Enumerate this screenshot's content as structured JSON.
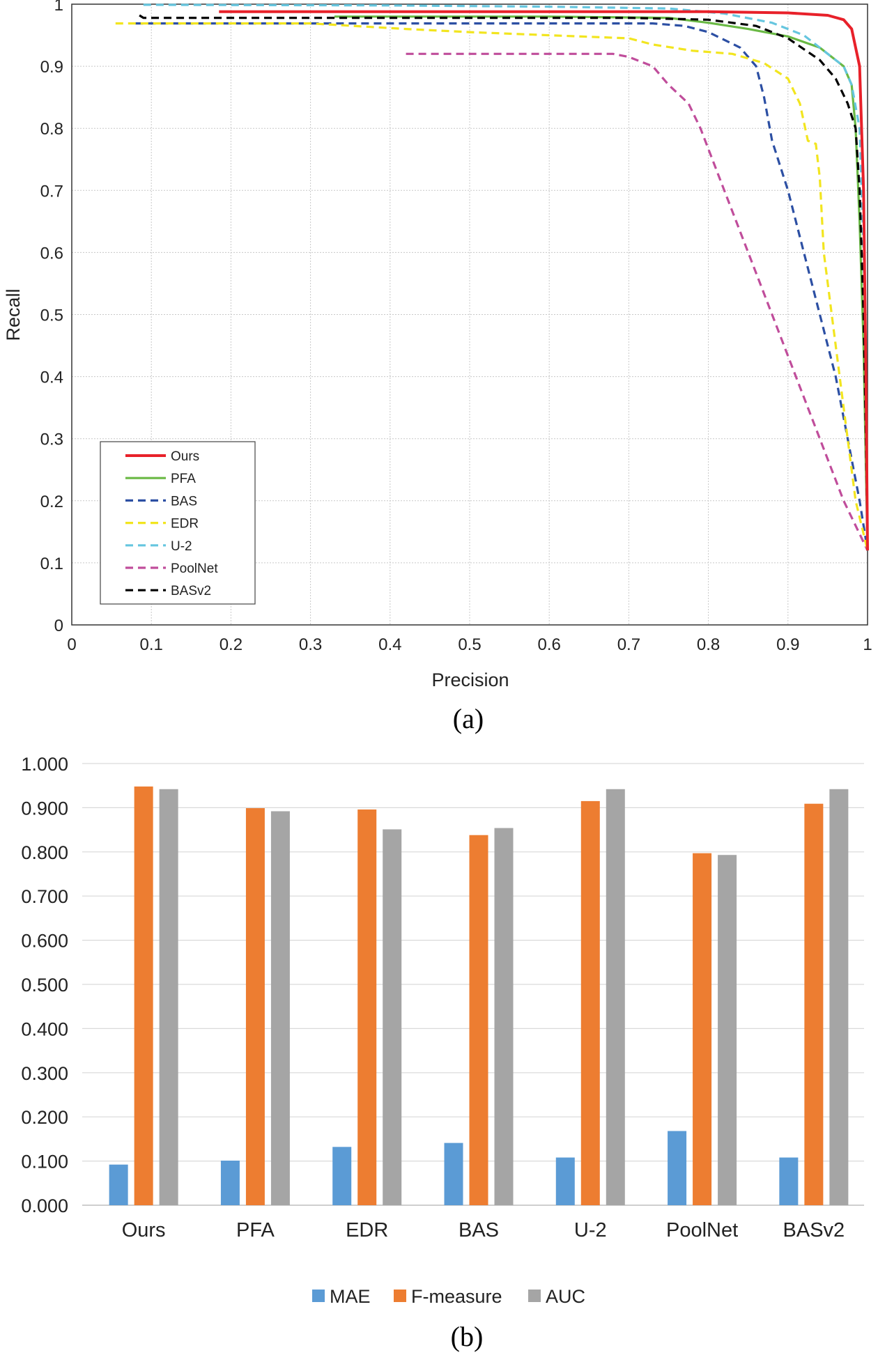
{
  "chart_data": [
    {
      "type": "line",
      "caption": "(a)",
      "xlabel": "Precision",
      "ylabel": "Recall",
      "xlim": [
        0,
        1
      ],
      "ylim": [
        0,
        1
      ],
      "grid": true,
      "legend_position": "bottom-left",
      "xticks": [
        "0",
        "0.1",
        "0.2",
        "0.3",
        "0.4",
        "0.5",
        "0.6",
        "0.7",
        "0.8",
        "0.9",
        "1"
      ],
      "yticks": [
        "0",
        "0.1",
        "0.2",
        "0.3",
        "0.4",
        "0.5",
        "0.6",
        "0.7",
        "0.8",
        "0.9",
        "1"
      ],
      "series": [
        {
          "name": "Ours",
          "color": "#e8212a",
          "style": "solid",
          "points": [
            [
              0.185,
              0.988
            ],
            [
              0.5,
              0.988
            ],
            [
              0.8,
              0.988
            ],
            [
              0.9,
              0.986
            ],
            [
              0.95,
              0.982
            ],
            [
              0.97,
              0.975
            ],
            [
              0.98,
              0.96
            ],
            [
              0.99,
              0.9
            ],
            [
              0.995,
              0.7
            ],
            [
              0.998,
              0.4
            ],
            [
              1.0,
              0.12
            ]
          ]
        },
        {
          "name": "PFA",
          "color": "#6ab945",
          "style": "solid",
          "points": [
            [
              0.33,
              0.98
            ],
            [
              0.6,
              0.98
            ],
            [
              0.75,
              0.978
            ],
            [
              0.8,
              0.97
            ],
            [
              0.85,
              0.96
            ],
            [
              0.9,
              0.948
            ],
            [
              0.94,
              0.93
            ],
            [
              0.97,
              0.9
            ],
            [
              0.98,
              0.87
            ],
            [
              0.985,
              0.8
            ],
            [
              0.99,
              0.65
            ],
            [
              0.995,
              0.45
            ],
            [
              0.998,
              0.25
            ],
            [
              1.0,
              0.12
            ]
          ]
        },
        {
          "name": "BAS",
          "color": "#2c4fa3",
          "style": "dashed",
          "points": [
            [
              0.08,
              0.969
            ],
            [
              0.4,
              0.969
            ],
            [
              0.6,
              0.969
            ],
            [
              0.73,
              0.969
            ],
            [
              0.77,
              0.965
            ],
            [
              0.8,
              0.955
            ],
            [
              0.84,
              0.93
            ],
            [
              0.86,
              0.9
            ],
            [
              0.87,
              0.85
            ],
            [
              0.88,
              0.78
            ],
            [
              0.9,
              0.7
            ],
            [
              0.92,
              0.6
            ],
            [
              0.94,
              0.5
            ],
            [
              0.96,
              0.4
            ],
            [
              0.975,
              0.3
            ],
            [
              0.99,
              0.2
            ],
            [
              1.0,
              0.12
            ]
          ]
        },
        {
          "name": "EDR",
          "color": "#f2e51f",
          "style": "dashed",
          "points": [
            [
              0.055,
              0.969
            ],
            [
              0.3,
              0.969
            ],
            [
              0.42,
              0.96
            ],
            [
              0.5,
              0.955
            ],
            [
              0.6,
              0.95
            ],
            [
              0.7,
              0.945
            ],
            [
              0.73,
              0.935
            ],
            [
              0.78,
              0.925
            ],
            [
              0.83,
              0.92
            ],
            [
              0.87,
              0.905
            ],
            [
              0.9,
              0.88
            ],
            [
              0.915,
              0.84
            ],
            [
              0.925,
              0.78
            ],
            [
              0.935,
              0.775
            ],
            [
              0.94,
              0.72
            ],
            [
              0.945,
              0.6
            ],
            [
              0.955,
              0.5
            ],
            [
              0.97,
              0.35
            ],
            [
              0.985,
              0.2
            ],
            [
              1.0,
              0.12
            ]
          ]
        },
        {
          "name": "U-2",
          "color": "#66c6df",
          "style": "dashed",
          "points": [
            [
              0.09,
              0.999
            ],
            [
              0.4,
              0.998
            ],
            [
              0.6,
              0.996
            ],
            [
              0.75,
              0.993
            ],
            [
              0.82,
              0.985
            ],
            [
              0.88,
              0.97
            ],
            [
              0.92,
              0.95
            ],
            [
              0.95,
              0.92
            ],
            [
              0.97,
              0.9
            ],
            [
              0.98,
              0.87
            ],
            [
              0.99,
              0.8
            ],
            [
              0.995,
              0.6
            ],
            [
              0.998,
              0.4
            ],
            [
              1.0,
              0.12
            ]
          ]
        },
        {
          "name": "PoolNet",
          "color": "#c04d9b",
          "style": "dashed",
          "points": [
            [
              0.42,
              0.92
            ],
            [
              0.55,
              0.92
            ],
            [
              0.68,
              0.92
            ],
            [
              0.7,
              0.915
            ],
            [
              0.73,
              0.9
            ],
            [
              0.75,
              0.87
            ],
            [
              0.775,
              0.84
            ],
            [
              0.79,
              0.8
            ],
            [
              0.82,
              0.7
            ],
            [
              0.85,
              0.6
            ],
            [
              0.88,
              0.5
            ],
            [
              0.91,
              0.4
            ],
            [
              0.94,
              0.3
            ],
            [
              0.97,
              0.2
            ],
            [
              1.0,
              0.12
            ]
          ]
        },
        {
          "name": "BASv2",
          "color": "#000000",
          "style": "dashed",
          "points": [
            [
              0.085,
              0.982
            ],
            [
              0.09,
              0.978
            ],
            [
              0.3,
              0.978
            ],
            [
              0.6,
              0.978
            ],
            [
              0.7,
              0.978
            ],
            [
              0.8,
              0.975
            ],
            [
              0.86,
              0.965
            ],
            [
              0.9,
              0.945
            ],
            [
              0.94,
              0.91
            ],
            [
              0.96,
              0.88
            ],
            [
              0.975,
              0.84
            ],
            [
              0.985,
              0.8
            ],
            [
              0.99,
              0.7
            ],
            [
              0.995,
              0.5
            ],
            [
              0.998,
              0.3
            ],
            [
              1.0,
              0.12
            ]
          ]
        }
      ]
    },
    {
      "type": "bar",
      "caption": "(b)",
      "categories": [
        "Ours",
        "PFA",
        "EDR",
        "BAS",
        "U-2",
        "PoolNet",
        "BASv2"
      ],
      "ylim": [
        0,
        1
      ],
      "yticks": [
        "0.000",
        "0.100",
        "0.200",
        "0.300",
        "0.400",
        "0.500",
        "0.600",
        "0.700",
        "0.800",
        "0.900",
        "1.000"
      ],
      "grid": true,
      "legend_position": "bottom-center",
      "series": [
        {
          "name": "MAE",
          "color": "#5b9bd5",
          "values": [
            0.092,
            0.101,
            0.132,
            0.141,
            0.108,
            0.168,
            0.108
          ]
        },
        {
          "name": "F-measure",
          "color": "#ed7d31",
          "values": [
            0.948,
            0.899,
            0.896,
            0.838,
            0.915,
            0.797,
            0.909
          ]
        },
        {
          "name": "AUC",
          "color": "#a5a5a5",
          "values": [
            0.942,
            0.892,
            0.851,
            0.854,
            0.942,
            0.793,
            0.942
          ]
        }
      ]
    }
  ]
}
